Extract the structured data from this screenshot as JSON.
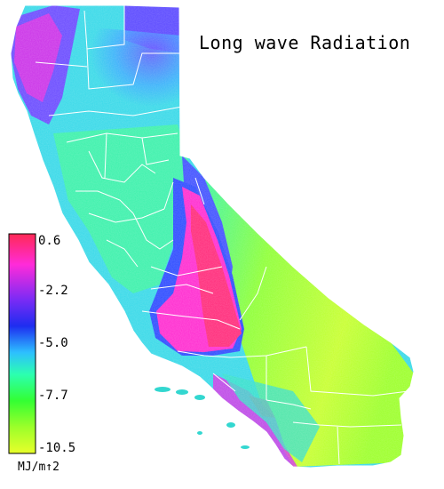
{
  "title": "Long wave Radiation",
  "legend": {
    "ticks": [
      "0.6",
      "-2.2",
      "-5.0",
      "-7.7",
      "-10.5"
    ],
    "colors": [
      "#ff2a55",
      "#ff2bd9",
      "#7a2bf5",
      "#1e2df0",
      "#2dbfff",
      "#2cffb0",
      "#33ff33",
      "#9cff2a",
      "#e8ff2a"
    ],
    "units": "MJ/m↑2"
  },
  "map_colors": {
    "north_magenta": "#d630e6",
    "north_blue": "#6a4bff",
    "cyan": "#37d9e8",
    "green": "#3cf5a0",
    "lime": "#8dff35",
    "yellow_green": "#c7ff2e",
    "valley_pink": "#ff2bd0",
    "valley_red": "#ff2a7a",
    "blue": "#4152ff",
    "county_lines": "#ffffff"
  }
}
